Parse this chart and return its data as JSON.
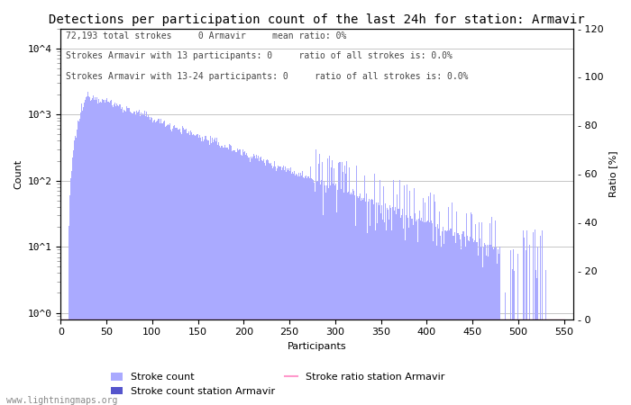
{
  "title": "Detections per participation count of the last 24h for station: Armavir",
  "xlabel": "Participants",
  "ylabel_left": "Count",
  "ylabel_right": "Ratio [%]",
  "annotation_lines": [
    "72,193 total strokes     0 Armavir     mean ratio: 0%",
    "Strokes Armavir with 13 participants: 0     ratio of all strokes is: 0.0%",
    "Strokes Armavir with 13-24 participants: 0     ratio of all strokes is: 0.0%"
  ],
  "bar_color_light": "#aaaaff",
  "bar_color_dark": "#5555cc",
  "ratio_line_color": "#ff99cc",
  "xlim": [
    0,
    560
  ],
  "ylim_right": [
    0,
    120
  ],
  "xticks": [
    0,
    50,
    100,
    150,
    200,
    250,
    300,
    350,
    400,
    450,
    500,
    550
  ],
  "yticks_right": [
    0,
    20,
    40,
    60,
    80,
    100,
    120
  ],
  "ytick_labels_left": [
    "10^0",
    "10^1",
    "10^2",
    "10^3",
    "10^4"
  ],
  "ytick_vals_left": [
    1,
    10,
    100,
    1000,
    10000
  ],
  "watermark": "www.lightningmaps.org",
  "title_fontsize": 10,
  "label_fontsize": 8,
  "annotation_fontsize": 7,
  "tick_fontsize": 8
}
